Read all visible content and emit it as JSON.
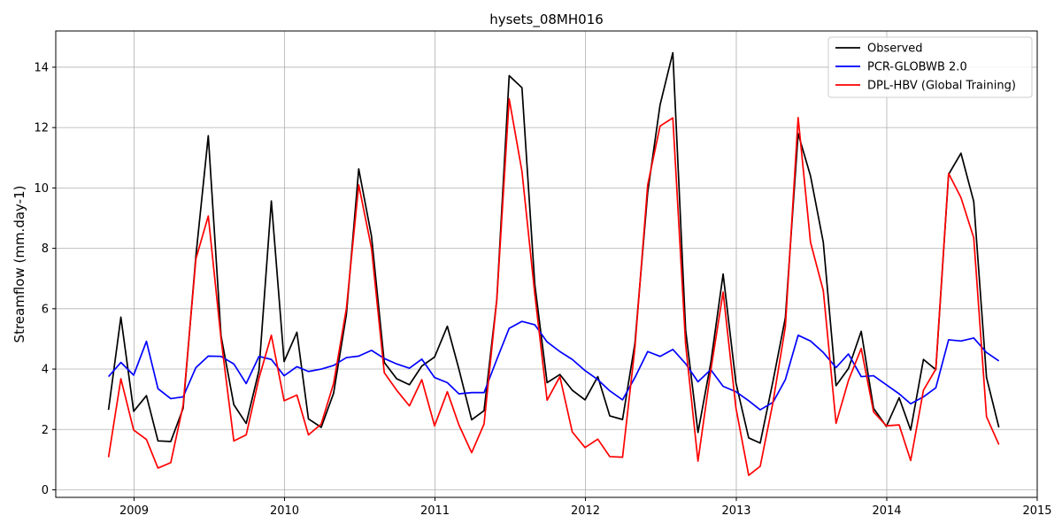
{
  "chart_data": {
    "type": "line",
    "title": "hysets_08MH016",
    "xlabel": "",
    "ylabel": "Streamflow (mm.day-1)",
    "xlim": [
      "2008-06-25",
      "2015-01-01"
    ],
    "ylim": [
      -0.25,
      15.2
    ],
    "x_ticks": [
      "2009",
      "2010",
      "2011",
      "2012",
      "2013",
      "2014",
      "2015"
    ],
    "y_ticks": [
      "0",
      "2",
      "4",
      "6",
      "8",
      "10",
      "12",
      "14"
    ],
    "grid": true,
    "legend_position": "top-right",
    "x": [
      "2008-10-31",
      "2008-11-30",
      "2008-12-31",
      "2009-01-31",
      "2009-02-28",
      "2009-03-31",
      "2009-04-30",
      "2009-05-31",
      "2009-06-30",
      "2009-07-31",
      "2009-08-31",
      "2009-09-30",
      "2009-10-31",
      "2009-11-30",
      "2009-12-31",
      "2010-01-31",
      "2010-02-28",
      "2010-03-31",
      "2010-04-30",
      "2010-05-31",
      "2010-06-30",
      "2010-07-31",
      "2010-08-31",
      "2010-09-30",
      "2010-10-31",
      "2010-11-30",
      "2010-12-31",
      "2011-01-31",
      "2011-02-28",
      "2011-03-31",
      "2011-04-30",
      "2011-05-31",
      "2011-06-30",
      "2011-07-31",
      "2011-08-31",
      "2011-09-30",
      "2011-10-31",
      "2011-11-30",
      "2011-12-31",
      "2012-01-31",
      "2012-02-29",
      "2012-03-31",
      "2012-04-30",
      "2012-05-31",
      "2012-06-30",
      "2012-07-31",
      "2012-08-31",
      "2012-09-30",
      "2012-10-31",
      "2012-11-30",
      "2012-12-31",
      "2013-01-31",
      "2013-02-28",
      "2013-03-31",
      "2013-04-30",
      "2013-05-31",
      "2013-06-30",
      "2013-07-31",
      "2013-08-31",
      "2013-09-30",
      "2013-10-31",
      "2013-11-30",
      "2013-12-31",
      "2014-01-31",
      "2014-02-28",
      "2014-03-31",
      "2014-04-30",
      "2014-05-31",
      "2014-06-30",
      "2014-07-31",
      "2014-08-31",
      "2014-09-30"
    ],
    "series": [
      {
        "name": "Observed",
        "color": "#000000",
        "values": [
          2.65,
          5.72,
          2.6,
          3.12,
          1.62,
          1.6,
          2.7,
          7.75,
          11.73,
          5.1,
          2.82,
          2.2,
          3.95,
          9.57,
          4.25,
          5.22,
          2.35,
          2.07,
          3.2,
          5.8,
          10.63,
          8.4,
          4.22,
          3.68,
          3.48,
          4.1,
          4.4,
          5.42,
          4.0,
          2.32,
          2.62,
          6.3,
          13.72,
          13.32,
          6.82,
          3.55,
          3.82,
          3.3,
          2.98,
          3.75,
          2.45,
          2.33,
          4.85,
          9.85,
          12.75,
          14.48,
          5.3,
          1.9,
          4.2,
          7.15,
          3.55,
          1.72,
          1.55,
          3.6,
          5.7,
          11.8,
          10.4,
          8.2,
          3.45,
          4.02,
          5.25,
          2.7,
          2.1,
          3.05,
          1.98,
          4.32,
          3.98,
          10.45,
          11.15,
          9.55,
          3.72,
          2.07
        ]
      },
      {
        "name": "PCR-GLOBWB 2.0",
        "color": "#0000ff",
        "values": [
          3.75,
          4.22,
          3.8,
          4.92,
          3.35,
          3.02,
          3.08,
          4.05,
          4.43,
          4.42,
          4.17,
          3.52,
          4.42,
          4.32,
          3.78,
          4.08,
          3.92,
          4.0,
          4.12,
          4.38,
          4.43,
          4.62,
          4.35,
          4.17,
          4.03,
          4.33,
          3.72,
          3.55,
          3.18,
          3.22,
          3.22,
          4.32,
          5.35,
          5.58,
          5.47,
          4.9,
          4.58,
          4.32,
          3.95,
          3.65,
          3.28,
          2.98,
          3.72,
          4.58,
          4.42,
          4.65,
          4.18,
          3.58,
          3.98,
          3.43,
          3.25,
          2.95,
          2.65,
          2.9,
          3.65,
          5.12,
          4.93,
          4.55,
          4.05,
          4.5,
          3.75,
          3.78,
          3.48,
          3.18,
          2.85,
          3.08,
          3.38,
          4.97,
          4.93,
          5.03,
          4.55,
          4.27
        ]
      },
      {
        "name": "DPL-HBV (Global Training)",
        "color": "#ff0000",
        "values": [
          1.08,
          3.68,
          1.98,
          1.67,
          0.72,
          0.9,
          2.8,
          7.65,
          9.07,
          5.0,
          1.62,
          1.82,
          3.7,
          5.12,
          2.95,
          3.14,
          1.82,
          2.18,
          3.52,
          6.0,
          10.1,
          8.0,
          3.88,
          3.3,
          2.78,
          3.65,
          2.12,
          3.25,
          2.15,
          1.23,
          2.18,
          6.3,
          12.95,
          10.55,
          6.5,
          2.97,
          3.75,
          1.92,
          1.4,
          1.68,
          1.1,
          1.08,
          4.7,
          10.1,
          12.05,
          12.32,
          4.82,
          0.95,
          3.95,
          6.55,
          2.72,
          0.48,
          0.78,
          2.9,
          5.4,
          12.33,
          8.2,
          6.6,
          2.2,
          3.62,
          4.68,
          2.58,
          2.12,
          2.15,
          0.97,
          3.3,
          4.0,
          10.48,
          9.68,
          8.35,
          2.42,
          1.5
        ]
      }
    ]
  }
}
